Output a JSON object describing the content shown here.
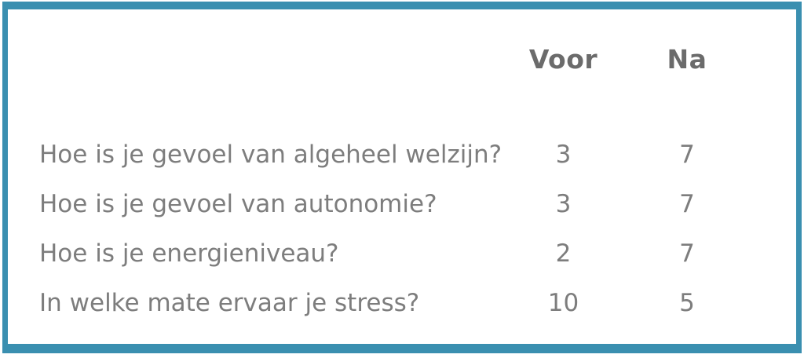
{
  "colors": {
    "border": "#3a8fb0",
    "header_text": "#6b6b6b",
    "body_text": "#7d7d7d"
  },
  "table": {
    "columns": {
      "question": "",
      "voor": "Voor",
      "na": "Na"
    },
    "rows": [
      {
        "question": "Hoe is je gevoel van algeheel welzijn?",
        "voor": "3",
        "na": "7"
      },
      {
        "question": "Hoe is je gevoel van autonomie?",
        "voor": "3",
        "na": "7"
      },
      {
        "question": "Hoe is je energieniveau?",
        "voor": "2",
        "na": "7"
      },
      {
        "question": "In welke mate ervaar je stress?",
        "voor": "10",
        "na": "5"
      }
    ]
  }
}
